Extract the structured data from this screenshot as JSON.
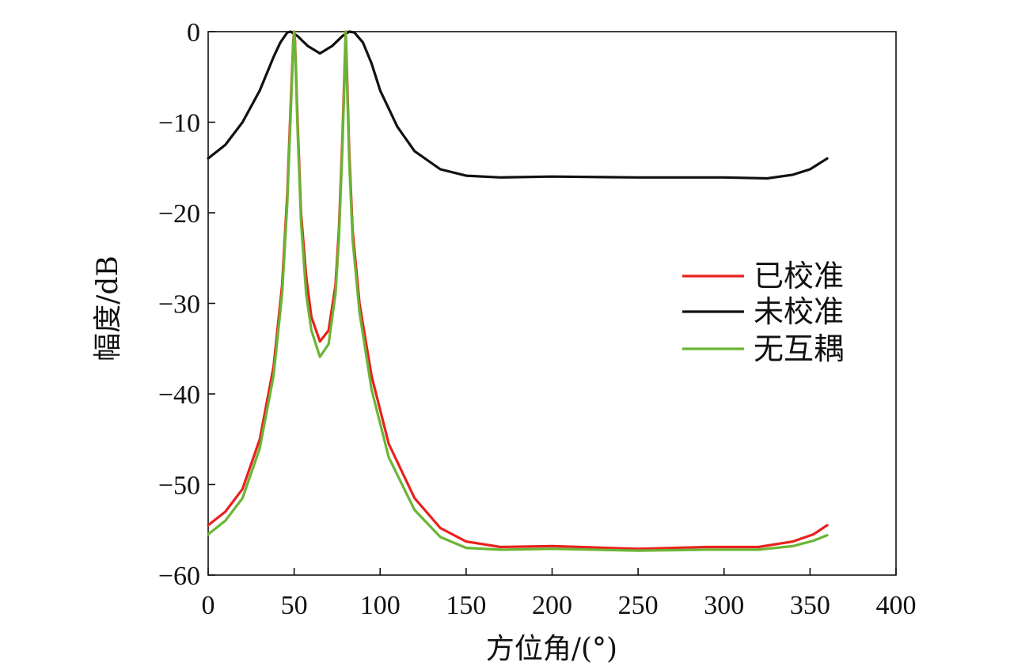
{
  "chart_data": {
    "type": "line",
    "title": "",
    "xlabel": "方位角/(°)",
    "ylabel": "幅度/dB",
    "xlim": [
      0,
      400
    ],
    "ylim": [
      -60,
      0
    ],
    "x_ticks": [
      0,
      50,
      100,
      150,
      200,
      250,
      300,
      350,
      400
    ],
    "y_ticks": [
      0,
      -10,
      -20,
      -30,
      -40,
      -50,
      -60
    ],
    "x_tick_labels": [
      "0",
      "50",
      "100",
      "150",
      "200",
      "250",
      "300",
      "350",
      "400"
    ],
    "y_tick_labels": [
      "0",
      "−10",
      "−20",
      "−30",
      "−40",
      "−50",
      "−60"
    ],
    "grid": false,
    "legend_position": "right",
    "series": [
      {
        "name": "已校准",
        "color": "#e8211d",
        "points": [
          [
            0,
            -54.5
          ],
          [
            10,
            -53
          ],
          [
            20,
            -50.5
          ],
          [
            30,
            -45
          ],
          [
            38,
            -37
          ],
          [
            43,
            -28
          ],
          [
            46,
            -18
          ],
          [
            48,
            -8
          ],
          [
            49.5,
            -1
          ],
          [
            50,
            0
          ],
          [
            50.5,
            -1
          ],
          [
            52,
            -10
          ],
          [
            54,
            -20
          ],
          [
            57,
            -27
          ],
          [
            60,
            -31.5
          ],
          [
            65,
            -34.2
          ],
          [
            70,
            -33
          ],
          [
            74,
            -28
          ],
          [
            76,
            -22
          ],
          [
            78,
            -12
          ],
          [
            79.5,
            -3
          ],
          [
            80,
            0
          ],
          [
            80.5,
            -3
          ],
          [
            82,
            -13
          ],
          [
            84,
            -22
          ],
          [
            88,
            -30
          ],
          [
            95,
            -38
          ],
          [
            105,
            -45.5
          ],
          [
            120,
            -51.5
          ],
          [
            135,
            -54.8
          ],
          [
            150,
            -56.3
          ],
          [
            170,
            -56.9
          ],
          [
            200,
            -56.8
          ],
          [
            250,
            -57.1
          ],
          [
            290,
            -56.9
          ],
          [
            320,
            -56.9
          ],
          [
            340,
            -56.3
          ],
          [
            352,
            -55.5
          ],
          [
            360,
            -54.5
          ]
        ]
      },
      {
        "name": "未校准",
        "color": "#111111",
        "points": [
          [
            0,
            -14
          ],
          [
            10,
            -12.5
          ],
          [
            20,
            -10
          ],
          [
            30,
            -6.5
          ],
          [
            38,
            -2.8
          ],
          [
            42,
            -1.2
          ],
          [
            46,
            -0.1
          ],
          [
            48,
            0
          ],
          [
            52,
            -0.5
          ],
          [
            58,
            -1.6
          ],
          [
            65,
            -2.4
          ],
          [
            72,
            -1.6
          ],
          [
            78,
            -0.5
          ],
          [
            82,
            0
          ],
          [
            85,
            -0.1
          ],
          [
            90,
            -1.2
          ],
          [
            95,
            -3.5
          ],
          [
            100,
            -6.5
          ],
          [
            110,
            -10.5
          ],
          [
            120,
            -13.2
          ],
          [
            135,
            -15.2
          ],
          [
            150,
            -15.9
          ],
          [
            170,
            -16.1
          ],
          [
            200,
            -16
          ],
          [
            250,
            -16.1
          ],
          [
            300,
            -16.1
          ],
          [
            325,
            -16.2
          ],
          [
            340,
            -15.8
          ],
          [
            350,
            -15.2
          ],
          [
            360,
            -14
          ]
        ]
      },
      {
        "name": "无互耦",
        "color": "#6ab535",
        "points": [
          [
            0,
            -55.5
          ],
          [
            10,
            -54
          ],
          [
            20,
            -51.5
          ],
          [
            30,
            -46
          ],
          [
            38,
            -38
          ],
          [
            43,
            -29
          ],
          [
            46,
            -19
          ],
          [
            48,
            -9
          ],
          [
            49.5,
            -1.5
          ],
          [
            50,
            0
          ],
          [
            50.5,
            -1.5
          ],
          [
            52,
            -11
          ],
          [
            54,
            -21
          ],
          [
            57,
            -29
          ],
          [
            60,
            -33
          ],
          [
            65,
            -35.9
          ],
          [
            70,
            -34.5
          ],
          [
            74,
            -29
          ],
          [
            76,
            -23
          ],
          [
            78,
            -13
          ],
          [
            79.5,
            -4
          ],
          [
            80,
            0
          ],
          [
            80.5,
            -4
          ],
          [
            82,
            -14
          ],
          [
            84,
            -23
          ],
          [
            88,
            -31
          ],
          [
            95,
            -39.5
          ],
          [
            105,
            -47
          ],
          [
            120,
            -52.8
          ],
          [
            135,
            -55.8
          ],
          [
            150,
            -57
          ],
          [
            170,
            -57.2
          ],
          [
            200,
            -57.1
          ],
          [
            250,
            -57.3
          ],
          [
            290,
            -57.2
          ],
          [
            320,
            -57.2
          ],
          [
            340,
            -56.8
          ],
          [
            352,
            -56.2
          ],
          [
            360,
            -55.6
          ]
        ]
      }
    ]
  }
}
